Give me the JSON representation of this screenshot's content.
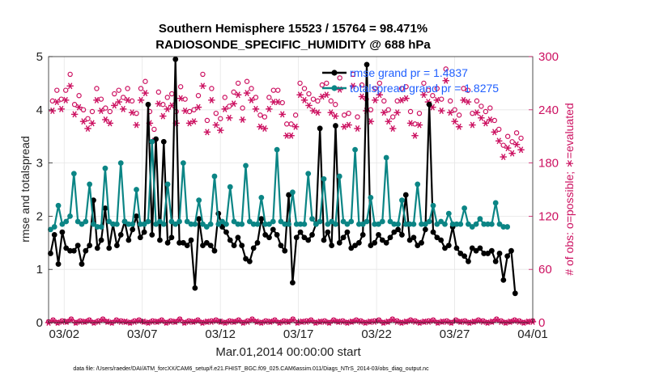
{
  "chart_data": {
    "type": "line",
    "title_line1": "Southern Hemisphere 15523 / 15764 = 98.471%",
    "title_line2": "RADIOSONDE_SPECIFIC_HUMIDITY @ 688 hPa",
    "ylabel_left": "rmse and totalspread",
    "ylabel_right": "# of obs: o=possible; ∗=evaluated",
    "xlabel": "Mar.01,2014 00:00:00 start",
    "footer": "data file: /Users/raeder/DAI/ATM_forcXX/CAM6_setup/f.e21.FHIST_BGC.f09_025.CAM6assim.011/Diags_NTrS_2014-03/obs_diag_output.nc",
    "x_range": [
      0.5,
      31.5
    ],
    "ylim_left": [
      0,
      5
    ],
    "ylim_right": [
      0,
      300
    ],
    "yticks_left": [
      0,
      1,
      2,
      3,
      4,
      5
    ],
    "yticks_right": [
      0,
      60,
      120,
      180,
      240,
      300
    ],
    "xticks": [
      {
        "x": 1.5,
        "label": "03/02"
      },
      {
        "x": 6.5,
        "label": "03/07"
      },
      {
        "x": 11.5,
        "label": "03/12"
      },
      {
        "x": 16.5,
        "label": "03/17"
      },
      {
        "x": 21.5,
        "label": "03/22"
      },
      {
        "x": 26.5,
        "label": "03/27"
      },
      {
        "x": 31.5,
        "label": "04/01"
      }
    ],
    "colors": {
      "rmse": "#000000",
      "spread": "#0b8585",
      "obs": "#cc1060",
      "legend_text": "#1f5fff"
    },
    "legend": [
      {
        "name": "rmse grand pr = 1.4837"
      },
      {
        "name": "totalspread grand pr = 1.8275"
      }
    ],
    "t_start": 0.5,
    "t_step": 0.25,
    "series": [
      {
        "name": "rmse",
        "values": [
          1.3,
          1.65,
          1.1,
          1.7,
          1.4,
          1.35,
          1.35,
          1.45,
          1.1,
          1.35,
          1.45,
          2.3,
          1.4,
          1.55,
          2.15,
          1.4,
          1.85,
          1.45,
          1.65,
          1.9,
          1.55,
          1.75,
          2.0,
          1.6,
          1.7,
          4.1,
          1.65,
          3.45,
          1.55,
          3.4,
          1.5,
          1.6,
          4.95,
          1.5,
          1.5,
          1.45,
          1.55,
          0.65,
          1.95,
          1.45,
          1.5,
          1.45,
          1.35,
          2.05,
          1.8,
          1.7,
          1.55,
          1.45,
          1.6,
          1.45,
          1.2,
          1.15,
          1.4,
          1.5,
          1.95,
          1.65,
          1.6,
          1.75,
          1.65,
          1.45,
          1.35,
          2.4,
          0.75,
          1.6,
          1.7,
          1.6,
          1.55,
          1.65,
          1.85,
          3.65,
          1.55,
          1.7,
          1.45,
          3.7,
          1.5,
          1.6,
          1.7,
          1.4,
          1.45,
          1.5,
          1.65,
          4.85,
          1.45,
          1.5,
          1.65,
          1.55,
          1.5,
          1.6,
          1.7,
          1.75,
          1.65,
          2.4,
          1.55,
          1.6,
          1.45,
          1.5,
          1.75,
          4.1,
          1.7,
          1.6,
          1.55,
          1.4,
          1.45,
          1.8,
          1.4,
          1.3,
          1.25,
          1.15,
          1.4,
          1.35,
          1.4,
          1.3,
          1.3,
          1.35,
          1.15,
          1.3,
          0.8,
          1.25,
          1.35,
          0.55
        ]
      },
      {
        "name": "totalspread",
        "values": [
          1.75,
          1.8,
          2.2,
          1.85,
          1.9,
          2.0,
          2.8,
          1.9,
          1.85,
          1.9,
          2.6,
          1.85,
          1.8,
          1.8,
          2.9,
          1.9,
          1.85,
          1.85,
          3.0,
          1.9,
          1.85,
          1.85,
          2.5,
          1.85,
          1.85,
          1.9,
          3.4,
          1.85,
          1.9,
          1.85,
          2.6,
          1.9,
          1.85,
          1.9,
          3.0,
          1.9,
          1.85,
          1.85,
          2.3,
          1.85,
          1.8,
          1.85,
          2.75,
          1.85,
          1.9,
          1.85,
          2.55,
          1.9,
          1.85,
          1.85,
          2.95,
          1.9,
          1.85,
          1.85,
          2.35,
          1.85,
          1.85,
          1.9,
          3.25,
          1.9,
          1.85,
          1.85,
          2.45,
          1.85,
          1.85,
          1.85,
          2.8,
          1.95,
          1.85,
          1.9,
          2.7,
          1.85,
          1.9,
          1.85,
          2.75,
          1.9,
          1.85,
          1.9,
          3.25,
          1.85,
          1.85,
          1.9,
          2.35,
          1.85,
          1.85,
          1.9,
          3.1,
          1.9,
          1.85,
          1.85,
          2.3,
          1.85,
          1.85,
          1.85,
          2.6,
          1.85,
          1.85,
          1.9,
          2.2,
          1.85,
          1.9,
          1.85,
          2.05,
          1.85,
          1.85,
          1.85,
          2.15,
          1.85,
          1.8,
          1.85,
          1.95,
          1.85,
          1.85,
          1.85,
          2.25,
          1.85,
          1.8,
          1.8
        ]
      }
    ],
    "obs_possible": [
      250,
      262,
      252,
      262,
      280,
      246,
      256,
      240,
      230,
      238,
      264,
      252,
      242,
      238,
      258,
      262,
      254,
      264,
      250,
      236,
      264,
      272,
      238,
      218,
      260,
      246,
      254,
      258,
      238,
      266,
      252,
      238,
      240,
      256,
      280,
      228,
      264,
      236,
      230,
      254,
      244,
      260,
      270,
      242,
      272,
      264,
      254,
      234,
      232,
      254,
      262,
      262,
      248,
      224,
      224,
      234,
      270,
      264,
      258,
      252,
      250,
      268,
      270,
      250,
      246,
      276,
      234,
      236,
      280,
      232,
      268,
      252,
      240,
      264,
      270,
      250,
      240,
      232,
      250,
      264,
      266,
      238,
      224,
      236,
      270,
      262,
      256,
      264,
      252,
      286,
      250,
      240,
      234,
      264,
      262,
      236,
      250,
      244,
      238,
      242,
      228,
      218,
      200,
      210,
      204,
      214,
      208
    ],
    "obs_evaluated": [
      248,
      258,
      250,
      260,
      276,
      244,
      252,
      236,
      228,
      234,
      260,
      248,
      238,
      234,
      254,
      258,
      250,
      260,
      246,
      232,
      260,
      268,
      234,
      214,
      256,
      242,
      250,
      254,
      234,
      262,
      248,
      234,
      236,
      252,
      276,
      224,
      260,
      232,
      226,
      250,
      240,
      256,
      266,
      238,
      268,
      260,
      250,
      230,
      228,
      250,
      258,
      258,
      244,
      220,
      220,
      230,
      266,
      260,
      254,
      248,
      246,
      264,
      266,
      246,
      242,
      272,
      230,
      232,
      276,
      228,
      264,
      248,
      236,
      260,
      266,
      246,
      236,
      228,
      246,
      260,
      262,
      234,
      220,
      232,
      266,
      258,
      252,
      260,
      248,
      282,
      246,
      236,
      230,
      260,
      258,
      232,
      246,
      240,
      234,
      238,
      224,
      214,
      196,
      206,
      200,
      210,
      204
    ],
    "obs_bottom_possible": [
      1,
      3,
      0,
      2,
      1,
      4,
      0,
      2,
      1,
      3,
      0,
      2,
      4,
      1,
      0,
      3,
      2,
      1,
      0,
      2,
      3,
      1,
      0,
      2,
      1,
      3,
      0,
      2,
      1,
      4,
      0,
      2,
      1,
      3,
      0,
      1,
      2,
      3,
      1,
      0,
      2,
      1,
      3,
      0,
      2,
      4,
      1,
      0,
      2,
      1,
      3,
      0,
      2,
      1,
      4,
      0,
      1,
      2,
      3,
      0,
      1,
      2,
      0,
      3,
      1,
      2,
      0,
      1,
      3,
      2,
      0,
      1,
      2,
      3,
      0,
      1,
      4,
      2,
      0,
      1,
      3,
      2,
      0,
      1,
      2,
      3,
      0,
      1,
      2,
      0,
      3,
      1,
      2,
      0,
      1,
      3,
      2,
      0,
      1,
      4,
      2,
      0,
      1,
      3,
      2,
      0,
      1,
      2
    ],
    "obs_bottom_evaluated": [
      0,
      2,
      0,
      1,
      1,
      3,
      0,
      1,
      1,
      2,
      0,
      1,
      3,
      1,
      0,
      2,
      1,
      1,
      0,
      1,
      2,
      1,
      0,
      1,
      1,
      2,
      0,
      1,
      1,
      3,
      0,
      1,
      1,
      2,
      0,
      1,
      1,
      2,
      1,
      0,
      1,
      1,
      2,
      0,
      1,
      3,
      1,
      0,
      1,
      1,
      2,
      0,
      1,
      1,
      3,
      0,
      1,
      1,
      2,
      0,
      1,
      1,
      0,
      2,
      1,
      1,
      0,
      1,
      2,
      1,
      0,
      1,
      1,
      2,
      0,
      1,
      3,
      1,
      0,
      1,
      2,
      1,
      0,
      1,
      1,
      2,
      0,
      1,
      1,
      0,
      2,
      1,
      1,
      0,
      1,
      2,
      1,
      0,
      1,
      3,
      1,
      0,
      1,
      2,
      1,
      0,
      1,
      1
    ]
  }
}
